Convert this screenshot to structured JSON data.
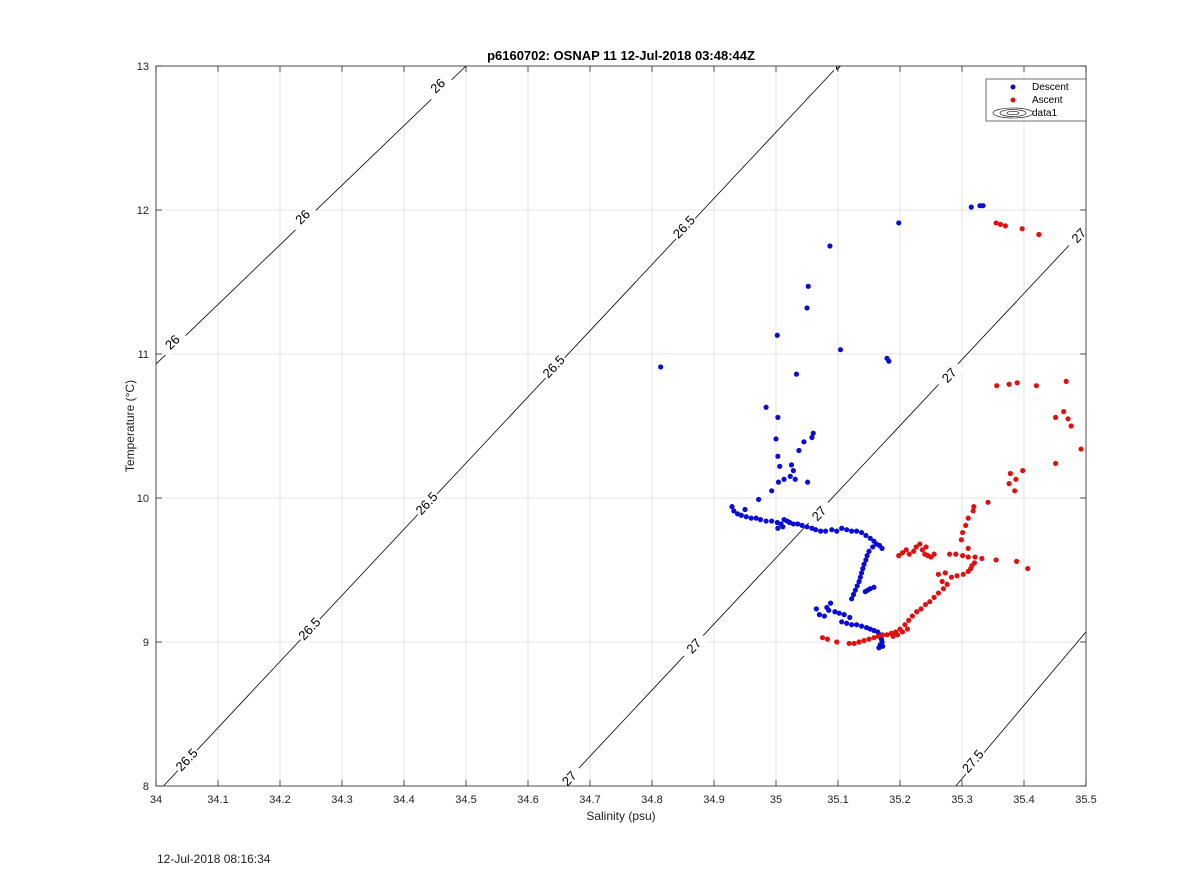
{
  "figure": {
    "timestamp": "12-Jul-2018 08:16:34"
  },
  "chart_data": {
    "type": "scatter",
    "title": "p6160702: OSNAP 11 12-Jul-2018 03:48:44Z",
    "xlabel": "Salinity (psu)",
    "ylabel": "Temperature (°C)",
    "xlim": [
      34,
      35.5
    ],
    "ylim": [
      8,
      13
    ],
    "xticks": [
      "34",
      "34.1",
      "34.2",
      "34.3",
      "34.4",
      "34.5",
      "34.6",
      "34.7",
      "34.8",
      "34.9",
      "35",
      "35.1",
      "35.2",
      "35.3",
      "35.4",
      "35.5"
    ],
    "yticks": [
      "8",
      "9",
      "10",
      "11",
      "12",
      "13"
    ],
    "grid": true,
    "legend_position": "top-right",
    "legend": [
      "Descent",
      "Ascent",
      "data1"
    ],
    "colors": {
      "descent": "#0b0bd6",
      "ascent": "#e01010",
      "contour": "#000000",
      "grid": "#e3e3e3"
    },
    "contours": [
      {
        "level": "26",
        "points": [
          [
            34.0,
            10.93
          ],
          [
            34.5,
            13.0
          ]
        ],
        "labels": [
          [
            34.027,
            11.08
          ],
          [
            34.237,
            11.95
          ],
          [
            34.455,
            12.86
          ]
        ]
      },
      {
        "level": "26.5",
        "points": [
          [
            34.012,
            8.0
          ],
          [
            35.1,
            13.0
          ]
        ],
        "labels": [
          [
            34.05,
            8.18
          ],
          [
            34.248,
            9.09
          ],
          [
            34.437,
            9.96
          ],
          [
            34.642,
            10.91
          ],
          [
            34.852,
            11.88
          ],
          [
            35.107,
            13.05
          ]
        ]
      },
      {
        "level": "27",
        "points": [
          [
            34.655,
            8.0
          ],
          [
            35.5,
            11.88
          ]
        ],
        "labels": [
          [
            34.667,
            8.05
          ],
          [
            34.868,
            8.97
          ],
          [
            35.07,
            9.89
          ],
          [
            35.28,
            10.85
          ],
          [
            35.489,
            11.82
          ]
        ]
      },
      {
        "level": "27.5",
        "points": [
          [
            35.29,
            8.0
          ],
          [
            35.5,
            9.07
          ]
        ],
        "labels": [
          [
            35.318,
            8.17
          ]
        ]
      }
    ],
    "series": [
      {
        "name": "Descent",
        "points": [
          [
            34.814,
            10.91
          ],
          [
            35.002,
            11.13
          ],
          [
            35.087,
            11.75
          ],
          [
            35.052,
            11.47
          ],
          [
            35.05,
            11.32
          ],
          [
            35.104,
            11.03
          ],
          [
            35.198,
            11.91
          ],
          [
            35.033,
            10.86
          ],
          [
            35.179,
            10.97
          ],
          [
            35.182,
            10.95
          ],
          [
            35.315,
            12.02
          ],
          [
            35.329,
            12.03
          ],
          [
            35.334,
            12.03
          ],
          [
            34.984,
            10.63
          ],
          [
            35.003,
            10.56
          ],
          [
            35.0,
            10.41
          ],
          [
            35.06,
            10.45
          ],
          [
            35.058,
            10.42
          ],
          [
            35.045,
            10.39
          ],
          [
            35.037,
            10.33
          ],
          [
            35.003,
            10.29
          ],
          [
            35.006,
            10.22
          ],
          [
            35.025,
            10.23
          ],
          [
            35.028,
            10.19
          ],
          [
            35.023,
            10.15
          ],
          [
            35.031,
            10.13
          ],
          [
            35.013,
            10.13
          ],
          [
            35.051,
            10.11
          ],
          [
            35.004,
            10.11
          ],
          [
            34.993,
            10.05
          ],
          [
            34.972,
            9.99
          ],
          [
            34.929,
            9.94
          ],
          [
            34.932,
            9.91
          ],
          [
            34.938,
            9.89
          ],
          [
            34.944,
            9.88
          ],
          [
            34.95,
            9.92
          ],
          [
            34.952,
            9.87
          ],
          [
            34.96,
            9.86
          ],
          [
            34.968,
            9.86
          ],
          [
            34.975,
            9.85
          ],
          [
            34.984,
            9.84
          ],
          [
            34.993,
            9.84
          ],
          [
            35.002,
            9.83
          ],
          [
            35.008,
            9.82
          ],
          [
            35.013,
            9.85
          ],
          [
            35.018,
            9.84
          ],
          [
            35.022,
            9.83
          ],
          [
            35.028,
            9.82
          ],
          [
            35.035,
            9.82
          ],
          [
            35.042,
            9.81
          ],
          [
            35.05,
            9.8
          ],
          [
            35.058,
            9.79
          ],
          [
            35.064,
            9.78
          ],
          [
            35.072,
            9.77
          ],
          [
            35.08,
            9.77
          ],
          [
            35.003,
            9.79
          ],
          [
            35.011,
            9.8
          ],
          [
            35.09,
            9.78
          ],
          [
            35.098,
            9.77
          ],
          [
            35.106,
            9.79
          ],
          [
            35.114,
            9.78
          ],
          [
            35.122,
            9.77
          ],
          [
            35.13,
            9.77
          ],
          [
            35.138,
            9.76
          ],
          [
            35.145,
            9.74
          ],
          [
            35.152,
            9.72
          ],
          [
            35.158,
            9.7
          ],
          [
            35.162,
            9.68
          ],
          [
            35.167,
            9.67
          ],
          [
            35.171,
            9.65
          ],
          [
            35.156,
            9.66
          ],
          [
            35.15,
            9.63
          ],
          [
            35.147,
            9.6
          ],
          [
            35.145,
            9.57
          ],
          [
            35.142,
            9.54
          ],
          [
            35.14,
            9.51
          ],
          [
            35.138,
            9.48
          ],
          [
            35.136,
            9.45
          ],
          [
            35.134,
            9.42
          ],
          [
            35.131,
            9.39
          ],
          [
            35.128,
            9.36
          ],
          [
            35.125,
            9.33
          ],
          [
            35.122,
            9.3
          ],
          [
            35.158,
            9.38
          ],
          [
            35.152,
            9.37
          ],
          [
            35.148,
            9.36
          ],
          [
            35.144,
            9.35
          ],
          [
            35.088,
            9.27
          ],
          [
            35.082,
            9.24
          ],
          [
            35.085,
            9.22
          ],
          [
            35.095,
            9.21
          ],
          [
            35.102,
            9.2
          ],
          [
            35.11,
            9.19
          ],
          [
            35.119,
            9.17
          ],
          [
            35.065,
            9.23
          ],
          [
            35.07,
            9.19
          ],
          [
            35.078,
            9.18
          ],
          [
            35.106,
            9.14
          ],
          [
            35.114,
            9.13
          ],
          [
            35.122,
            9.12
          ],
          [
            35.13,
            9.12
          ],
          [
            35.138,
            9.11
          ],
          [
            35.146,
            9.1
          ],
          [
            35.152,
            9.09
          ],
          [
            35.158,
            9.08
          ],
          [
            35.164,
            9.07
          ],
          [
            35.168,
            9.05
          ],
          [
            35.17,
            9.02
          ],
          [
            35.171,
            9.0
          ],
          [
            35.168,
            8.98
          ],
          [
            35.166,
            8.96
          ],
          [
            35.172,
            8.97
          ]
        ]
      },
      {
        "name": "Ascent",
        "points": [
          [
            35.355,
            11.91
          ],
          [
            35.362,
            11.9
          ],
          [
            35.37,
            11.89
          ],
          [
            35.397,
            11.87
          ],
          [
            35.424,
            11.83
          ],
          [
            35.356,
            10.78
          ],
          [
            35.376,
            10.79
          ],
          [
            35.389,
            10.8
          ],
          [
            35.42,
            10.78
          ],
          [
            35.468,
            10.81
          ],
          [
            35.451,
            10.56
          ],
          [
            35.464,
            10.6
          ],
          [
            35.471,
            10.55
          ],
          [
            35.476,
            10.5
          ],
          [
            35.492,
            10.34
          ],
          [
            35.451,
            10.24
          ],
          [
            35.398,
            10.19
          ],
          [
            35.378,
            10.17
          ],
          [
            35.387,
            10.13
          ],
          [
            35.376,
            10.1
          ],
          [
            35.385,
            10.05
          ],
          [
            35.342,
            9.97
          ],
          [
            35.319,
            9.94
          ],
          [
            35.318,
            9.91
          ],
          [
            35.31,
            9.86
          ],
          [
            35.306,
            9.81
          ],
          [
            35.301,
            9.76
          ],
          [
            35.299,
            9.71
          ],
          [
            35.31,
            9.65
          ],
          [
            35.301,
            9.6
          ],
          [
            35.29,
            9.61
          ],
          [
            35.28,
            9.61
          ],
          [
            35.31,
            9.59
          ],
          [
            35.321,
            9.59
          ],
          [
            35.332,
            9.58
          ],
          [
            35.355,
            9.57
          ],
          [
            35.388,
            9.56
          ],
          [
            35.406,
            9.51
          ],
          [
            35.32,
            9.55
          ],
          [
            35.316,
            9.53
          ],
          [
            35.314,
            9.51
          ],
          [
            35.31,
            9.49
          ],
          [
            35.302,
            9.47
          ],
          [
            35.292,
            9.46
          ],
          [
            35.283,
            9.45
          ],
          [
            35.273,
            9.48
          ],
          [
            35.262,
            9.47
          ],
          [
            35.268,
            9.42
          ],
          [
            35.276,
            9.4
          ],
          [
            35.27,
            9.37
          ],
          [
            35.262,
            9.34
          ],
          [
            35.255,
            9.31
          ],
          [
            35.248,
            9.28
          ],
          [
            35.241,
            9.26
          ],
          [
            35.234,
            9.23
          ],
          [
            35.227,
            9.21
          ],
          [
            35.22,
            9.18
          ],
          [
            35.214,
            9.15
          ],
          [
            35.208,
            9.12
          ],
          [
            35.2,
            9.09
          ],
          [
            35.193,
            9.07
          ],
          [
            35.186,
            9.06
          ],
          [
            35.179,
            9.05
          ],
          [
            35.172,
            9.05
          ],
          [
            35.165,
            9.04
          ],
          [
            35.158,
            9.03
          ],
          [
            35.15,
            9.02
          ],
          [
            35.142,
            9.01
          ],
          [
            35.134,
            9.0
          ],
          [
            35.126,
            8.99
          ],
          [
            35.118,
            8.99
          ],
          [
            35.098,
            9.0
          ],
          [
            35.075,
            9.03
          ],
          [
            35.083,
            9.02
          ],
          [
            35.189,
            9.04
          ],
          [
            35.196,
            9.05
          ],
          [
            35.204,
            9.07
          ],
          [
            35.212,
            9.09
          ],
          [
            35.198,
            9.6
          ],
          [
            35.204,
            9.62
          ],
          [
            35.21,
            9.64
          ],
          [
            35.215,
            9.61
          ],
          [
            35.222,
            9.63
          ],
          [
            35.226,
            9.66
          ],
          [
            35.232,
            9.68
          ],
          [
            35.236,
            9.64
          ],
          [
            35.24,
            9.61
          ],
          [
            35.245,
            9.6
          ],
          [
            35.25,
            9.59
          ],
          [
            35.255,
            9.61
          ],
          [
            35.242,
            9.66
          ]
        ]
      }
    ]
  }
}
